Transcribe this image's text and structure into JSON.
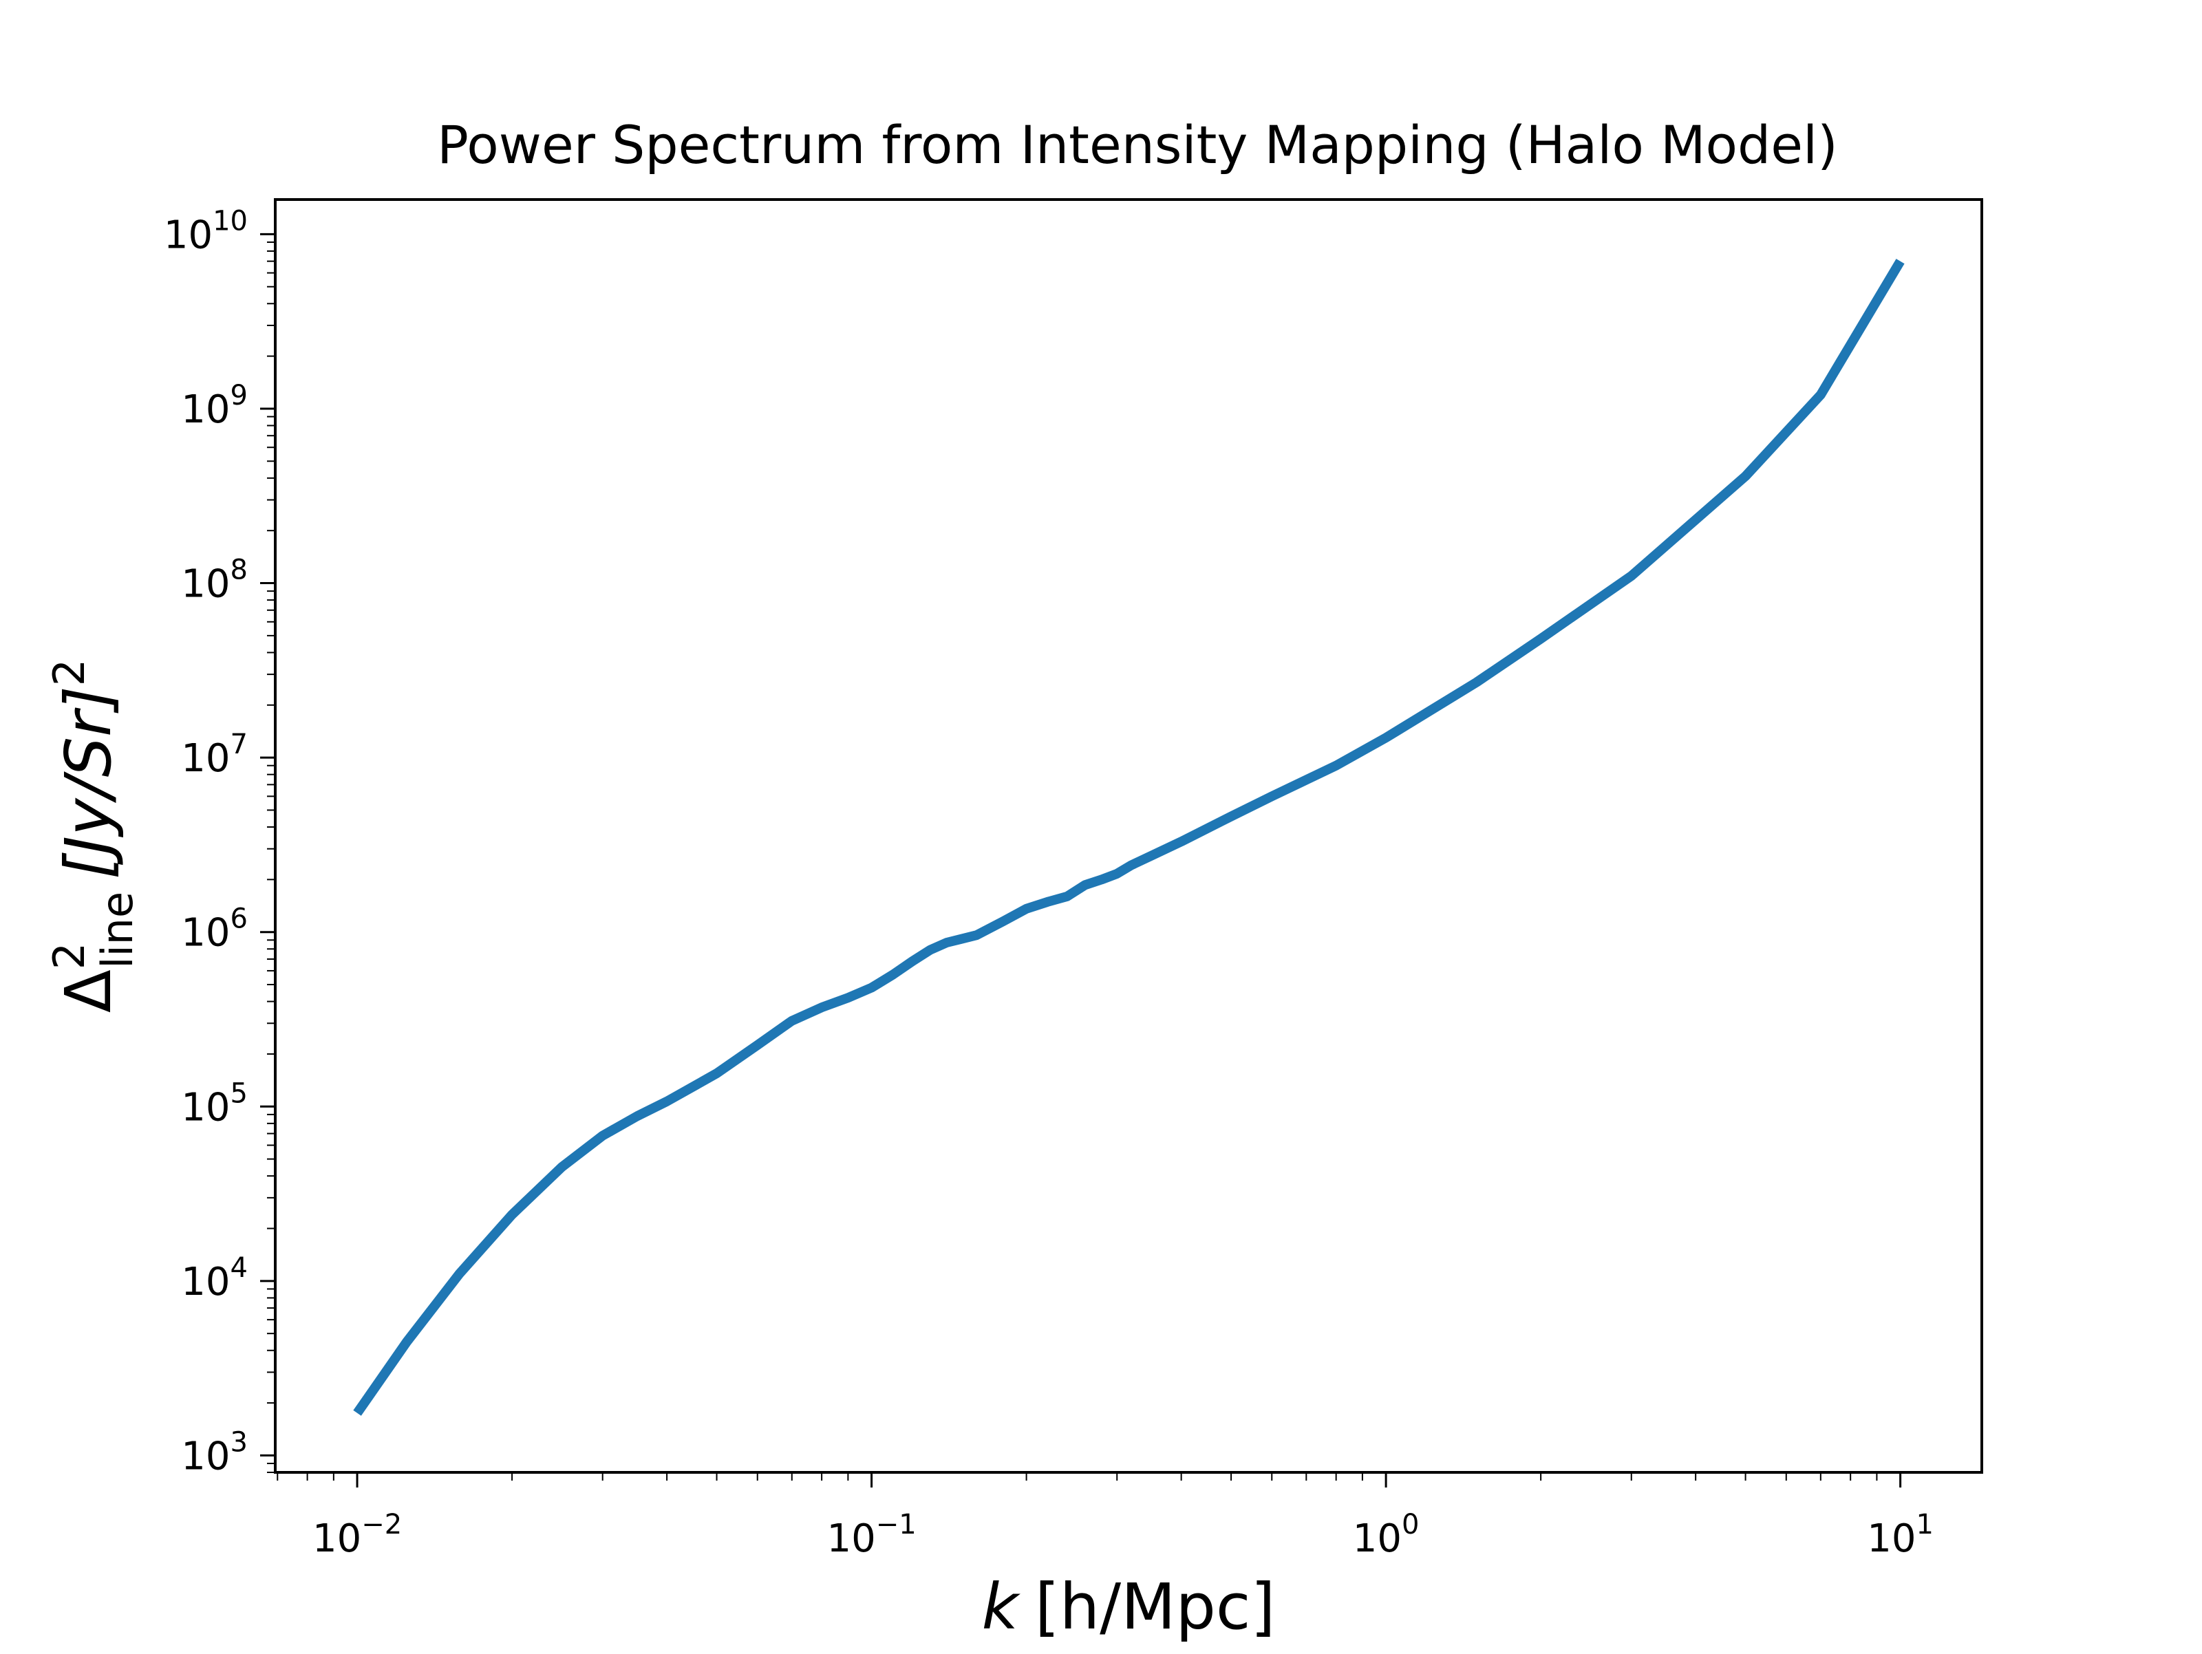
{
  "chart_data": {
    "type": "line",
    "title": "Power Spectrum from Intensity Mapping (Halo Model)",
    "xlabel": {
      "symbol": "k",
      "unit": "[h/Mpc]"
    },
    "ylabel": {
      "symbol": "Δ",
      "superscript": "2",
      "subscript": "line",
      "unit": "[Jy/Sr]",
      "unit_power": "2"
    },
    "xscale": "log",
    "yscale": "log",
    "xlim": [
      0.00693,
      14.4
    ],
    "ylim": [
      800,
      15800000000
    ],
    "xticks": [
      {
        "value": 0.01,
        "base": "10",
        "exp": "−2"
      },
      {
        "value": 0.1,
        "base": "10",
        "exp": "−1"
      },
      {
        "value": 1,
        "base": "10",
        "exp": "0"
      },
      {
        "value": 10,
        "base": "10",
        "exp": "1"
      }
    ],
    "yticks": [
      {
        "value": 1000,
        "base": "10",
        "exp": "3"
      },
      {
        "value": 10000,
        "base": "10",
        "exp": "4"
      },
      {
        "value": 100000,
        "base": "10",
        "exp": "5"
      },
      {
        "value": 1000000,
        "base": "10",
        "exp": "6"
      },
      {
        "value": 10000000,
        "base": "10",
        "exp": "7"
      },
      {
        "value": 100000000,
        "base": "10",
        "exp": "8"
      },
      {
        "value": 1000000000,
        "base": "10",
        "exp": "9"
      },
      {
        "value": 10000000000,
        "base": "10",
        "exp": "10"
      }
    ],
    "grid": false,
    "line_color": "#1f77b4",
    "series": [
      {
        "x": [
          0.01,
          0.0125,
          0.0158,
          0.02,
          0.025,
          0.03,
          0.035,
          0.04,
          0.045,
          0.05,
          0.06,
          0.07,
          0.08,
          0.09,
          0.1,
          0.11,
          0.12,
          0.13,
          0.14,
          0.16,
          0.18,
          0.2,
          0.22,
          0.24,
          0.26,
          0.28,
          0.3,
          0.32,
          0.35,
          0.4,
          0.5,
          0.6,
          0.8,
          1.0,
          1.5,
          2.0,
          3.0,
          5.0,
          7.0,
          10.0
        ],
        "y": [
          1750,
          4500,
          11000,
          24000,
          45000,
          68000,
          88000,
          107000,
          130000,
          155000,
          225000,
          310000,
          370000,
          420000,
          480000,
          570000,
          680000,
          790000,
          870000,
          960000,
          1150000,
          1360000,
          1490000,
          1600000,
          1860000,
          2000000,
          2160000,
          2420000,
          2740000,
          3300000,
          4600000,
          6000000,
          9000000,
          13000000,
          27000000,
          48000000,
          110000000,
          410000000,
          1200000000,
          7000000000
        ]
      }
    ]
  }
}
